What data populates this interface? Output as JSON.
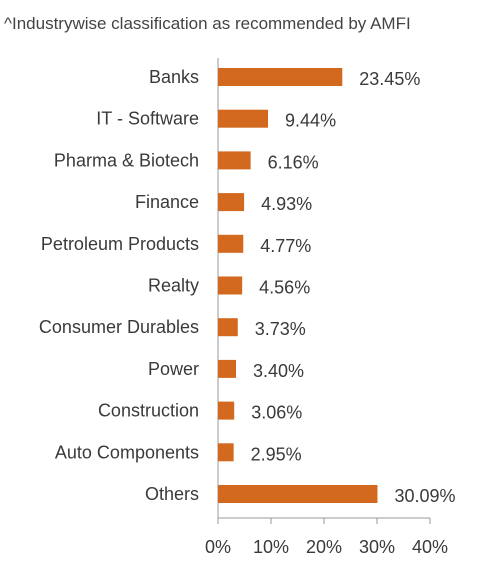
{
  "note": "^Industrywise classification as recommended by AMFI",
  "colors": {
    "bar": "#D2691E",
    "axis": "#9a9a9a",
    "text": "#3a3a3a"
  },
  "chart_data": {
    "type": "bar",
    "orientation": "horizontal",
    "title": "",
    "xlabel": "",
    "ylabel": "",
    "categories": [
      "Banks",
      "IT - Software",
      "Pharma & Biotech",
      "Finance",
      "Petroleum Products",
      "Realty",
      "Consumer Durables",
      "Power",
      "Construction",
      "Auto Components",
      "Others"
    ],
    "values": [
      23.45,
      9.44,
      6.16,
      4.93,
      4.77,
      4.56,
      3.73,
      3.4,
      3.06,
      2.95,
      30.09
    ],
    "value_labels": [
      "23.45%",
      "9.44%",
      "6.16%",
      "4.93%",
      "4.77%",
      "4.56%",
      "3.73%",
      "3.40%",
      "3.06%",
      "2.95%",
      "30.09%"
    ],
    "xlim": [
      0,
      40
    ],
    "xticks": [
      0,
      10,
      20,
      30,
      40
    ],
    "xtick_labels": [
      "0%",
      "10%",
      "20%",
      "30%",
      "40%"
    ],
    "grid": false,
    "legend": "none"
  }
}
